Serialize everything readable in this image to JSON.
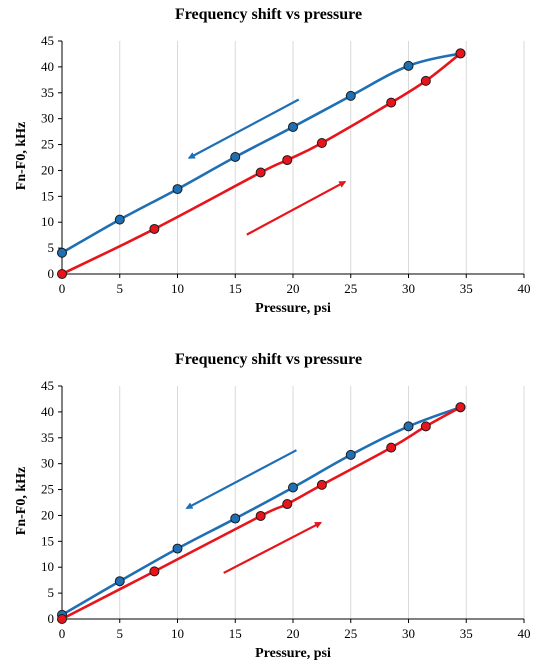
{
  "chart_data": [
    {
      "type": "line",
      "title": "Frequency shift vs pressure",
      "xlabel": "Pressure, psi",
      "ylabel": "Fn-F0, kHz",
      "xlim": [
        0,
        40
      ],
      "ylim": [
        0,
        45
      ],
      "xticks": [
        0,
        5,
        10,
        15,
        20,
        25,
        30,
        35,
        40
      ],
      "yticks": [
        0,
        5,
        10,
        15,
        20,
        25,
        30,
        35,
        40,
        45
      ],
      "grid": "vertical",
      "series": [
        {
          "color": "#1f6fb5",
          "x": [
            0,
            5,
            10,
            15,
            20,
            25,
            30,
            34.5
          ],
          "y": [
            4.1,
            10.5,
            16.4,
            22.6,
            28.4,
            34.4,
            40.2,
            42.6
          ]
        },
        {
          "color": "#e8141c",
          "x": [
            0,
            8,
            17.2,
            19.5,
            22.5,
            28.5,
            31.5,
            34.5
          ],
          "y": [
            0,
            8.7,
            19.6,
            22.0,
            25.3,
            33.1,
            37.3,
            42.6
          ]
        }
      ],
      "arrows": [
        {
          "color": "#1f6fb5",
          "from": [
            20.5,
            33.7
          ],
          "to": [
            11,
            22.4
          ]
        },
        {
          "color": "#e8141c",
          "from": [
            16,
            7.6
          ],
          "to": [
            24.5,
            17.8
          ]
        }
      ]
    },
    {
      "type": "line",
      "title": "Frequency shift vs pressure",
      "xlabel": "Pressure, psi",
      "ylabel": "Fn-F0, kHz",
      "xlim": [
        0,
        40
      ],
      "ylim": [
        0,
        45
      ],
      "xticks": [
        0,
        5,
        10,
        15,
        20,
        25,
        30,
        35,
        40
      ],
      "yticks": [
        0,
        5,
        10,
        15,
        20,
        25,
        30,
        35,
        40,
        45
      ],
      "grid": "vertical",
      "series": [
        {
          "color": "#1f6fb5",
          "x": [
            0,
            5,
            10,
            15,
            20,
            25,
            30,
            34.5
          ],
          "y": [
            0.8,
            7.3,
            13.6,
            19.4,
            25.4,
            31.7,
            37.2,
            40.9
          ]
        },
        {
          "color": "#e8141c",
          "x": [
            0,
            8,
            17.2,
            19.5,
            22.5,
            28.5,
            31.5,
            34.5
          ],
          "y": [
            0,
            9.2,
            19.9,
            22.2,
            25.9,
            33.1,
            37.2,
            40.9
          ]
        }
      ],
      "arrows": [
        {
          "color": "#1f6fb5",
          "from": [
            20.3,
            32.6
          ],
          "to": [
            10.8,
            21.4
          ]
        },
        {
          "color": "#e8141c",
          "from": [
            14,
            8.9
          ],
          "to": [
            22.4,
            18.6
          ]
        }
      ]
    }
  ]
}
